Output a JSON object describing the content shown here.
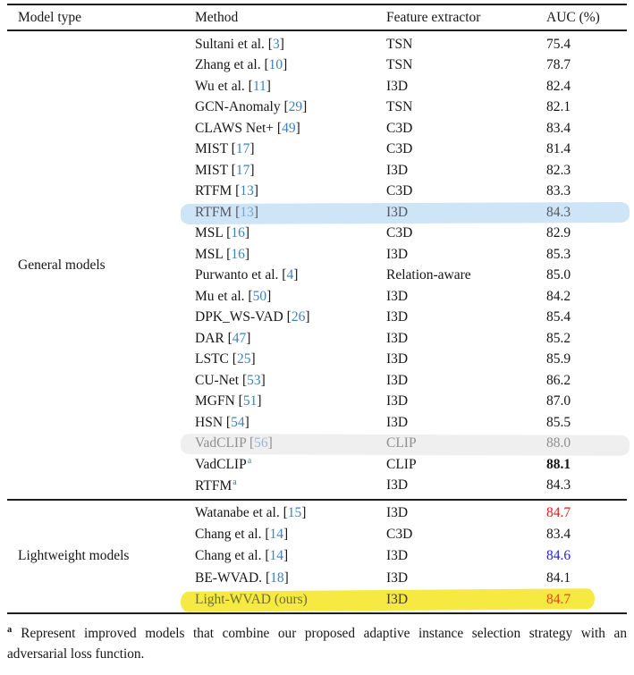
{
  "colors": {
    "citation_blue": "#3d82bd",
    "auc_red": "#e31b1c",
    "auc_blue": "#2424d0",
    "highlight_blue": "#cee4f7",
    "highlight_gray": "#efefef",
    "highlight_yellow": "#f6e942"
  },
  "table": {
    "columns": [
      "Model type",
      "Method",
      "Feature extractor",
      "AUC (%)"
    ],
    "groups": [
      {
        "label": "General models",
        "rows": [
          {
            "method": "Sultani et al.",
            "cite": "3",
            "extractor": "TSN",
            "auc": "75.4"
          },
          {
            "method": "Zhang et al.",
            "cite": "10",
            "extractor": "TSN",
            "auc": "78.7"
          },
          {
            "method": "Wu et al.",
            "cite": "11",
            "extractor": "I3D",
            "auc": "82.4"
          },
          {
            "method": "GCN-Anomaly",
            "cite": "29",
            "extractor": "TSN",
            "auc": "82.1"
          },
          {
            "method": "CLAWS Net+",
            "cite": "49",
            "extractor": "C3D",
            "auc": "83.4"
          },
          {
            "method": "MIST",
            "cite": "17",
            "extractor": "C3D",
            "auc": "81.4"
          },
          {
            "method": "MIST",
            "cite": "17",
            "extractor": "I3D",
            "auc": "82.3"
          },
          {
            "method": "RTFM",
            "cite": "13",
            "extractor": "C3D",
            "auc": "83.3"
          },
          {
            "method": "RTFM",
            "cite": "13",
            "extractor": "I3D",
            "auc": "84.3",
            "highlight": "blue"
          },
          {
            "method": "MSL",
            "cite": "16",
            "extractor": "C3D",
            "auc": "82.9"
          },
          {
            "method": "MSL",
            "cite": "16",
            "extractor": "I3D",
            "auc": "85.3"
          },
          {
            "method": "Purwanto et al.",
            "cite": "4",
            "extractor": "Relation-aware",
            "auc": "85.0"
          },
          {
            "method": "Mu et al.",
            "cite": "50",
            "extractor": "I3D",
            "auc": "84.2"
          },
          {
            "method": "DPK_WS-VAD",
            "cite": "26",
            "extractor": "I3D",
            "auc": "85.4"
          },
          {
            "method": "DAR",
            "cite": "47",
            "extractor": "I3D",
            "auc": "85.2"
          },
          {
            "method": "LSTC",
            "cite": "25",
            "extractor": "I3D",
            "auc": "85.9"
          },
          {
            "method": "CU-Net",
            "cite": "53",
            "extractor": "I3D",
            "auc": "86.2"
          },
          {
            "method": "MGFN",
            "cite": "51",
            "extractor": "I3D",
            "auc": "87.0"
          },
          {
            "method": "HSN",
            "cite": "54",
            "extractor": "I3D",
            "auc": "85.5"
          },
          {
            "method": "VadCLIP",
            "cite": "56",
            "extractor": "CLIP",
            "auc": "88.0",
            "highlight": "gray"
          },
          {
            "method": "VadCLIP",
            "sup": "a",
            "extractor": "CLIP",
            "auc": "88.1",
            "auc_bold": true
          },
          {
            "method": "RTFM",
            "sup": "a",
            "extractor": "I3D",
            "auc": "84.3"
          }
        ]
      },
      {
        "label": "Lightweight models",
        "rows": [
          {
            "method": "Watanabe et al.",
            "cite": "15",
            "extractor": "I3D",
            "auc": "84.7",
            "auc_color": "red"
          },
          {
            "method": "Chang et al.",
            "cite": "14",
            "extractor": "C3D",
            "auc": "83.4"
          },
          {
            "method": "Chang et al.",
            "cite": "14",
            "extractor": "I3D",
            "auc": "84.6",
            "auc_color": "blue"
          },
          {
            "method": "BE-WVAD.",
            "cite": "18",
            "extractor": "I3D",
            "auc": "84.1"
          },
          {
            "method": "Light-WVAD (ours)",
            "extractor": "I3D",
            "auc": "84.7",
            "auc_color": "red",
            "highlight": "yellow"
          }
        ]
      }
    ]
  },
  "footnote": {
    "marker": "a",
    "text": "Represent improved models that combine our proposed adaptive instance selection strategy with an adversarial loss function."
  }
}
